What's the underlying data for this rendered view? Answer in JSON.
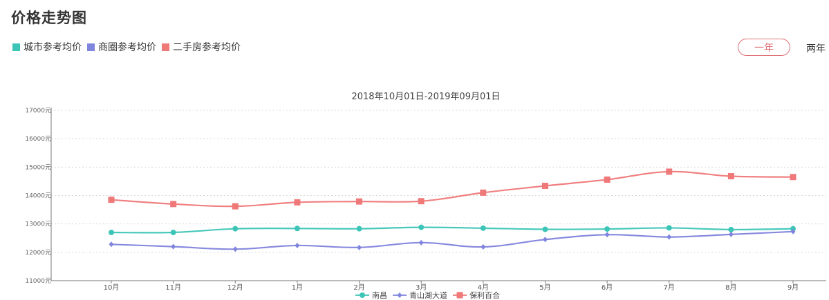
{
  "page": {
    "title": "价格走势图",
    "legend": [
      {
        "label": "城市参考均价",
        "color": "#3cc5b7"
      },
      {
        "label": "商圈参考均价",
        "color": "#7f84dc"
      },
      {
        "label": "二手房参考均价",
        "color": "#ef7879"
      }
    ],
    "range_buttons": {
      "selected": "一年",
      "other": "两年"
    }
  },
  "chart_data": {
    "type": "line",
    "title": "2018年10月01日-2019年09月01日",
    "categories": [
      "10月",
      "11月",
      "12月",
      "1月",
      "2月",
      "3月",
      "4月",
      "5月",
      "6月",
      "7月",
      "8月",
      "9月"
    ],
    "ylim": [
      11000,
      17000
    ],
    "yticks": [
      11000,
      12000,
      13000,
      14000,
      15000,
      16000,
      17000
    ],
    "ytick_labels": [
      "11000元",
      "12000元",
      "13000元",
      "14000元",
      "15000元",
      "16000元",
      "17000元"
    ],
    "grid": true,
    "legend_position": "bottom-center",
    "series": [
      {
        "name": "南昌",
        "color": "#3cc5b7",
        "marker": "circle",
        "values": [
          12700,
          12700,
          12830,
          12840,
          12830,
          12880,
          12850,
          12810,
          12820,
          12860,
          12800,
          12830
        ]
      },
      {
        "name": "青山湖大道",
        "color": "#7f84dc",
        "marker": "diamond",
        "values": [
          12280,
          12200,
          12110,
          12240,
          12170,
          12340,
          12190,
          12450,
          12620,
          12540,
          12630,
          12730
        ]
      },
      {
        "name": "保利百合",
        "color": "#ef7879",
        "marker": "square",
        "values": [
          13850,
          13700,
          13620,
          13760,
          13790,
          13800,
          14100,
          14340,
          14560,
          14840,
          14680,
          14650
        ]
      }
    ]
  }
}
